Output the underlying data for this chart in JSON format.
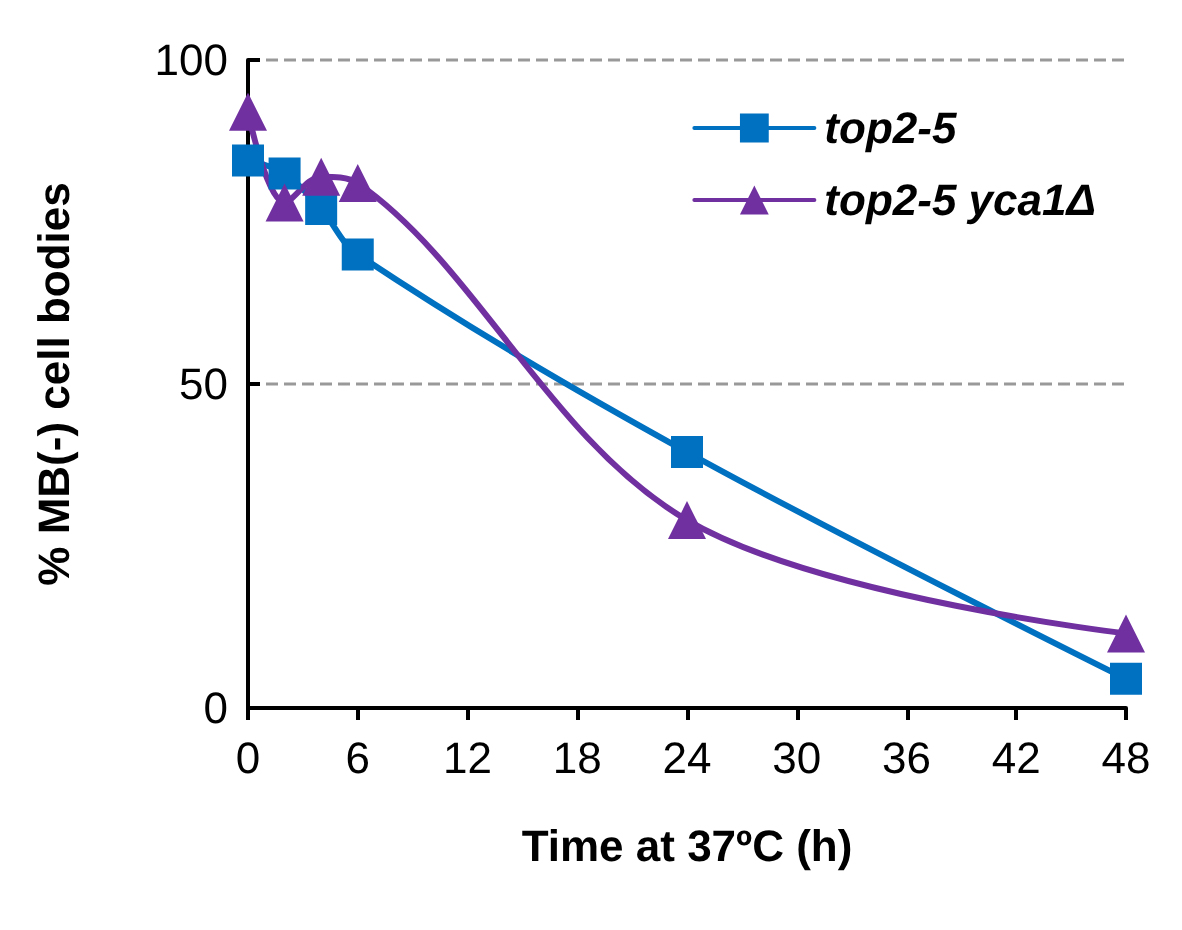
{
  "chart_data": {
    "type": "line",
    "xlabel": "Time at 37ºC (h)",
    "ylabel": "% MB(-) cell bodies",
    "x": [
      0,
      2,
      4,
      6,
      24,
      48
    ],
    "series": [
      {
        "name": "top2-5",
        "color": "#0070c0",
        "marker": "square",
        "values": [
          84.5,
          82.5,
          77,
          70,
          39.5,
          4.5
        ]
      },
      {
        "name": "top2-5 yca1Δ",
        "color": "#7030a0",
        "marker": "triangle",
        "values": [
          92,
          78,
          82,
          81,
          29,
          11.5
        ]
      }
    ],
    "xlim": [
      0,
      48
    ],
    "xticks": [
      0,
      6,
      12,
      18,
      24,
      30,
      36,
      42,
      48
    ],
    "ylim": [
      0,
      100
    ],
    "yticks": [
      0,
      50,
      100
    ],
    "grid": "y",
    "legend": "top right",
    "line_style": "solid"
  }
}
